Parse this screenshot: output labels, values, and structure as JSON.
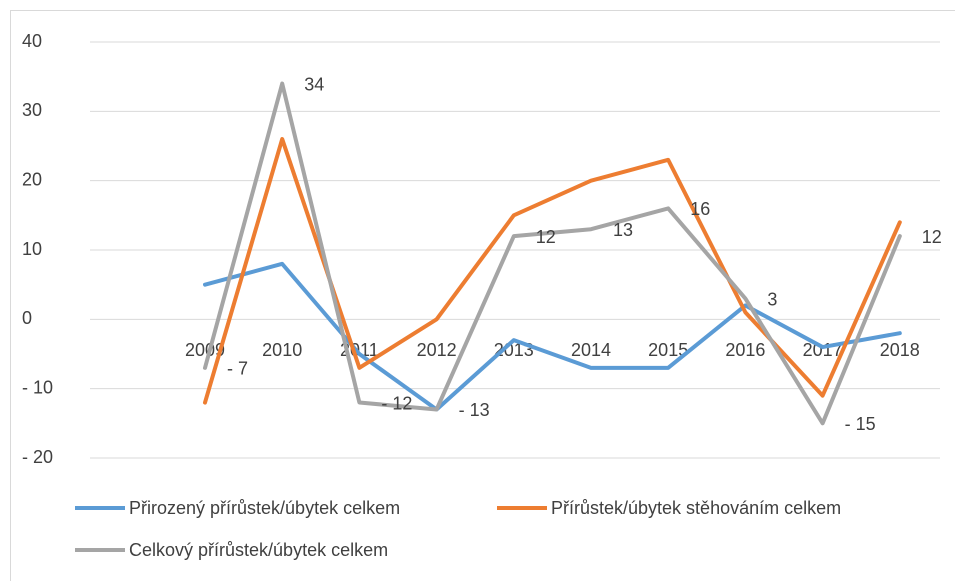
{
  "chart_data": {
    "type": "line",
    "categories": [
      "2009",
      "2010",
      "2011",
      "2012",
      "2013",
      "2014",
      "2015",
      "2016",
      "2017",
      "2018"
    ],
    "series": [
      {
        "name": "Přirozený přírůstek/úbytek celkem",
        "color": "#5b9bd5",
        "values": [
          5,
          8,
          -5,
          -13,
          -3,
          -7,
          -7,
          2,
          -4,
          -2
        ]
      },
      {
        "name": "Přírůstek/úbytek stěhováním celkem",
        "color": "#ed7d31",
        "values": [
          -12,
          26,
          -7,
          0,
          15,
          20,
          23,
          1,
          -11,
          14
        ]
      },
      {
        "name": "Celkový přírůstek/úbytek celkem",
        "color": "#a5a5a5",
        "values": [
          -7,
          34,
          -12,
          -13,
          12,
          13,
          16,
          3,
          -15,
          12
        ],
        "value_labels": [
          "- 7",
          "34",
          "- 12",
          "- 13",
          "12",
          "13",
          "16",
          "3",
          "- 15",
          "12"
        ]
      }
    ],
    "ylim": [
      -20,
      40
    ],
    "yticks": [
      {
        "value": -20,
        "label": "- 20"
      },
      {
        "value": -10,
        "label": "- 10"
      },
      0,
      10,
      20,
      30,
      40
    ],
    "grid": true,
    "legend": "bottom"
  }
}
